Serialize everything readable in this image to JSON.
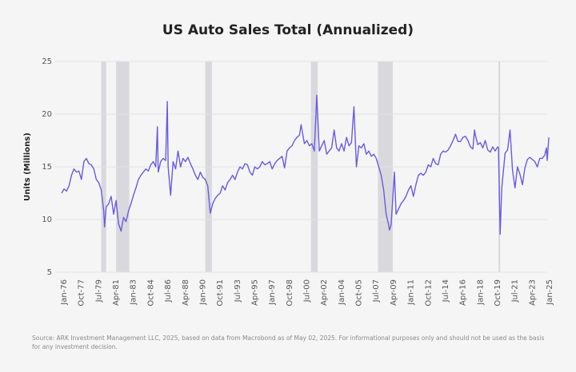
{
  "chart_data": {
    "type": "line",
    "title": "US Auto Sales Total (Annualized)",
    "ylabel": "Units (Millions)",
    "source": "Source: ARK Investment Management LLC, 2025, based on data from Macrobond as of May 02, 2025. For informational purposes only and should not be used as the basis for any investment decision.",
    "ylim": [
      5,
      25
    ],
    "yticks": [
      5,
      10,
      15,
      20,
      25
    ],
    "xlim": [
      "Jan-76",
      "Jan-25"
    ],
    "xticks": [
      "Jan-76",
      "Oct-77",
      "Jul-79",
      "Apr-81",
      "Jan-83",
      "Oct-84",
      "Jul-86",
      "Apr-88",
      "Jan-90",
      "Oct-91",
      "Jul-93",
      "Apr-95",
      "Jan-97",
      "Oct-98",
      "Jul-00",
      "Apr-02",
      "Jan-04",
      "Oct-05",
      "Jul-07",
      "Apr-09",
      "Jan-11",
      "Oct-12",
      "Jul-14",
      "Apr-16",
      "Jan-18",
      "Oct-19",
      "Jul-21",
      "Apr-23",
      "Jan-25"
    ],
    "grid": true,
    "shaded_periods": [
      [
        "Jan-80",
        "Jul-80"
      ],
      [
        "Jul-81",
        "Nov-82"
      ],
      [
        "Jul-90",
        "Mar-91"
      ],
      [
        "Mar-01",
        "Nov-01"
      ],
      [
        "Dec-07",
        "Jun-09"
      ],
      [
        "Feb-20",
        "Apr-20"
      ]
    ],
    "shade_color": "#d4d4d8",
    "series": [
      {
        "name": "US Auto Sales Total",
        "color": "#6a5ae0",
        "x": [
          "Jan-76",
          "Apr-76",
          "Jul-76",
          "Oct-76",
          "Jan-77",
          "Apr-77",
          "Jul-77",
          "Oct-77",
          "Jan-78",
          "Apr-78",
          "Jul-78",
          "Oct-78",
          "Jan-79",
          "Apr-79",
          "Jul-79",
          "Oct-79",
          "Jan-80",
          "Apr-80",
          "May-80",
          "Jul-80",
          "Oct-80",
          "Jan-81",
          "Apr-81",
          "Jul-81",
          "Oct-81",
          "Jan-82",
          "Apr-82",
          "Jul-82",
          "Oct-82",
          "Jan-83",
          "Apr-83",
          "Jul-83",
          "Oct-83",
          "Jan-84",
          "Apr-84",
          "Jul-84",
          "Oct-84",
          "Jan-85",
          "Apr-85",
          "Jul-85",
          "Sep-85",
          "Oct-85",
          "Jan-86",
          "Apr-86",
          "Jul-86",
          "Sep-86",
          "Oct-86",
          "Jan-87",
          "Apr-87",
          "Jul-87",
          "Oct-87",
          "Jan-88",
          "Apr-88",
          "Jul-88",
          "Oct-88",
          "Jan-89",
          "Apr-89",
          "Jul-89",
          "Oct-89",
          "Jan-90",
          "Apr-90",
          "Jul-90",
          "Oct-90",
          "Jan-91",
          "Apr-91",
          "Jul-91",
          "Oct-91",
          "Jan-92",
          "Apr-92",
          "Jul-92",
          "Oct-92",
          "Jan-93",
          "Apr-93",
          "Jul-93",
          "Oct-93",
          "Jan-94",
          "Apr-94",
          "Jul-94",
          "Oct-94",
          "Jan-95",
          "Apr-95",
          "Jul-95",
          "Oct-95",
          "Jan-96",
          "Apr-96",
          "Jul-96",
          "Oct-96",
          "Jan-97",
          "Apr-97",
          "Jul-97",
          "Oct-97",
          "Jan-98",
          "Apr-98",
          "Jul-98",
          "Oct-98",
          "Jan-99",
          "Apr-99",
          "Jul-99",
          "Oct-99",
          "Jan-00",
          "Mar-00",
          "Jul-00",
          "Oct-00",
          "Jan-01",
          "Apr-01",
          "Jul-01",
          "Oct-01",
          "Jan-02",
          "Apr-02",
          "Jul-02",
          "Oct-02",
          "Jan-03",
          "Apr-03",
          "Jul-03",
          "Oct-03",
          "Jan-04",
          "Apr-04",
          "Jul-04",
          "Oct-04",
          "Jan-05",
          "Apr-05",
          "Jul-05",
          "Oct-05",
          "Jan-06",
          "Apr-06",
          "Jul-06",
          "Oct-06",
          "Jan-07",
          "Apr-07",
          "Jul-07",
          "Oct-07",
          "Jan-08",
          "Apr-08",
          "Jul-08",
          "Oct-08",
          "Jan-09",
          "Feb-09",
          "Apr-09",
          "Aug-09",
          "Oct-09",
          "Jan-10",
          "Apr-10",
          "Jul-10",
          "Oct-10",
          "Jan-11",
          "Apr-11",
          "Jul-11",
          "Oct-11",
          "Jan-12",
          "Apr-12",
          "Jul-12",
          "Oct-12",
          "Jan-13",
          "Apr-13",
          "Jul-13",
          "Oct-13",
          "Jan-14",
          "Apr-14",
          "Jul-14",
          "Oct-14",
          "Jan-15",
          "Apr-15",
          "Jul-15",
          "Oct-15",
          "Jan-16",
          "Apr-16",
          "Jul-16",
          "Oct-16",
          "Jan-17",
          "Apr-17",
          "Jul-17",
          "Sep-17",
          "Oct-17",
          "Jan-18",
          "Apr-18",
          "Jul-18",
          "Oct-18",
          "Jan-19",
          "Apr-19",
          "Jul-19",
          "Oct-19",
          "Jan-20",
          "Feb-20",
          "Apr-20",
          "Jun-20",
          "Oct-20",
          "Jan-21",
          "Apr-21",
          "Jul-21",
          "Oct-21",
          "Jan-22",
          "Apr-22",
          "Jul-22",
          "Oct-22",
          "Jan-23",
          "Apr-23",
          "Jul-23",
          "Oct-23",
          "Jan-24",
          "Apr-24",
          "Jul-24",
          "Oct-24",
          "Dec-24",
          "Jan-25",
          "Mar-25"
        ],
        "values": [
          12.5,
          12.9,
          12.7,
          13.2,
          14.2,
          14.8,
          14.5,
          14.6,
          13.8,
          15.5,
          15.8,
          15.3,
          15.2,
          14.8,
          13.8,
          13.5,
          12.8,
          10.8,
          9.3,
          11.2,
          11.5,
          12.2,
          10.5,
          11.8,
          9.6,
          8.9,
          10.2,
          9.8,
          10.8,
          11.5,
          12.3,
          13.0,
          13.8,
          14.2,
          14.5,
          14.8,
          14.6,
          15.2,
          15.5,
          15.0,
          18.8,
          14.5,
          15.5,
          15.8,
          15.6,
          21.2,
          15.0,
          12.3,
          15.5,
          14.8,
          16.5,
          15.0,
          15.8,
          15.5,
          15.9,
          15.3,
          14.8,
          14.2,
          13.8,
          14.5,
          14.0,
          13.8,
          13.2,
          10.6,
          11.5,
          12.0,
          12.3,
          12.5,
          13.2,
          12.8,
          13.5,
          13.8,
          14.2,
          13.8,
          14.5,
          15.0,
          14.8,
          15.3,
          15.2,
          14.5,
          14.2,
          15.0,
          14.8,
          15.0,
          15.5,
          15.2,
          15.3,
          15.5,
          14.8,
          15.3,
          15.6,
          15.8,
          16.0,
          14.9,
          16.5,
          16.8,
          17.0,
          17.5,
          17.8,
          18.0,
          19.0,
          17.2,
          17.5,
          17.0,
          17.2,
          16.5,
          21.8,
          16.5,
          17.0,
          17.5,
          16.2,
          16.5,
          16.8,
          18.5,
          16.8,
          16.5,
          17.2,
          16.5,
          17.8,
          17.0,
          17.3,
          20.7,
          15.0,
          17.0,
          16.8,
          17.2,
          16.2,
          16.5,
          16.0,
          16.2,
          15.8,
          15.0,
          14.2,
          12.8,
          10.5,
          9.5,
          9.0,
          9.5,
          14.5,
          10.5,
          11.0,
          11.5,
          11.8,
          12.2,
          12.8,
          13.2,
          12.2,
          13.3,
          14.2,
          14.4,
          14.2,
          14.5,
          15.2,
          15.0,
          15.8,
          15.3,
          15.2,
          16.2,
          16.5,
          16.4,
          16.6,
          17.0,
          17.5,
          18.1,
          17.4,
          17.4,
          17.8,
          17.9,
          17.5,
          16.9,
          16.7,
          18.5,
          18.0,
          17.1,
          17.3,
          16.8,
          17.5,
          16.6,
          16.4,
          16.9,
          16.5,
          16.9,
          16.8,
          8.6,
          13.0,
          16.3,
          16.6,
          18.5,
          14.7,
          13.0,
          15.0,
          14.3,
          13.3,
          14.9,
          15.7,
          15.9,
          15.7,
          15.5,
          15.0,
          15.8,
          15.8,
          16.1,
          16.8,
          15.6,
          17.8
        ]
      }
    ]
  }
}
